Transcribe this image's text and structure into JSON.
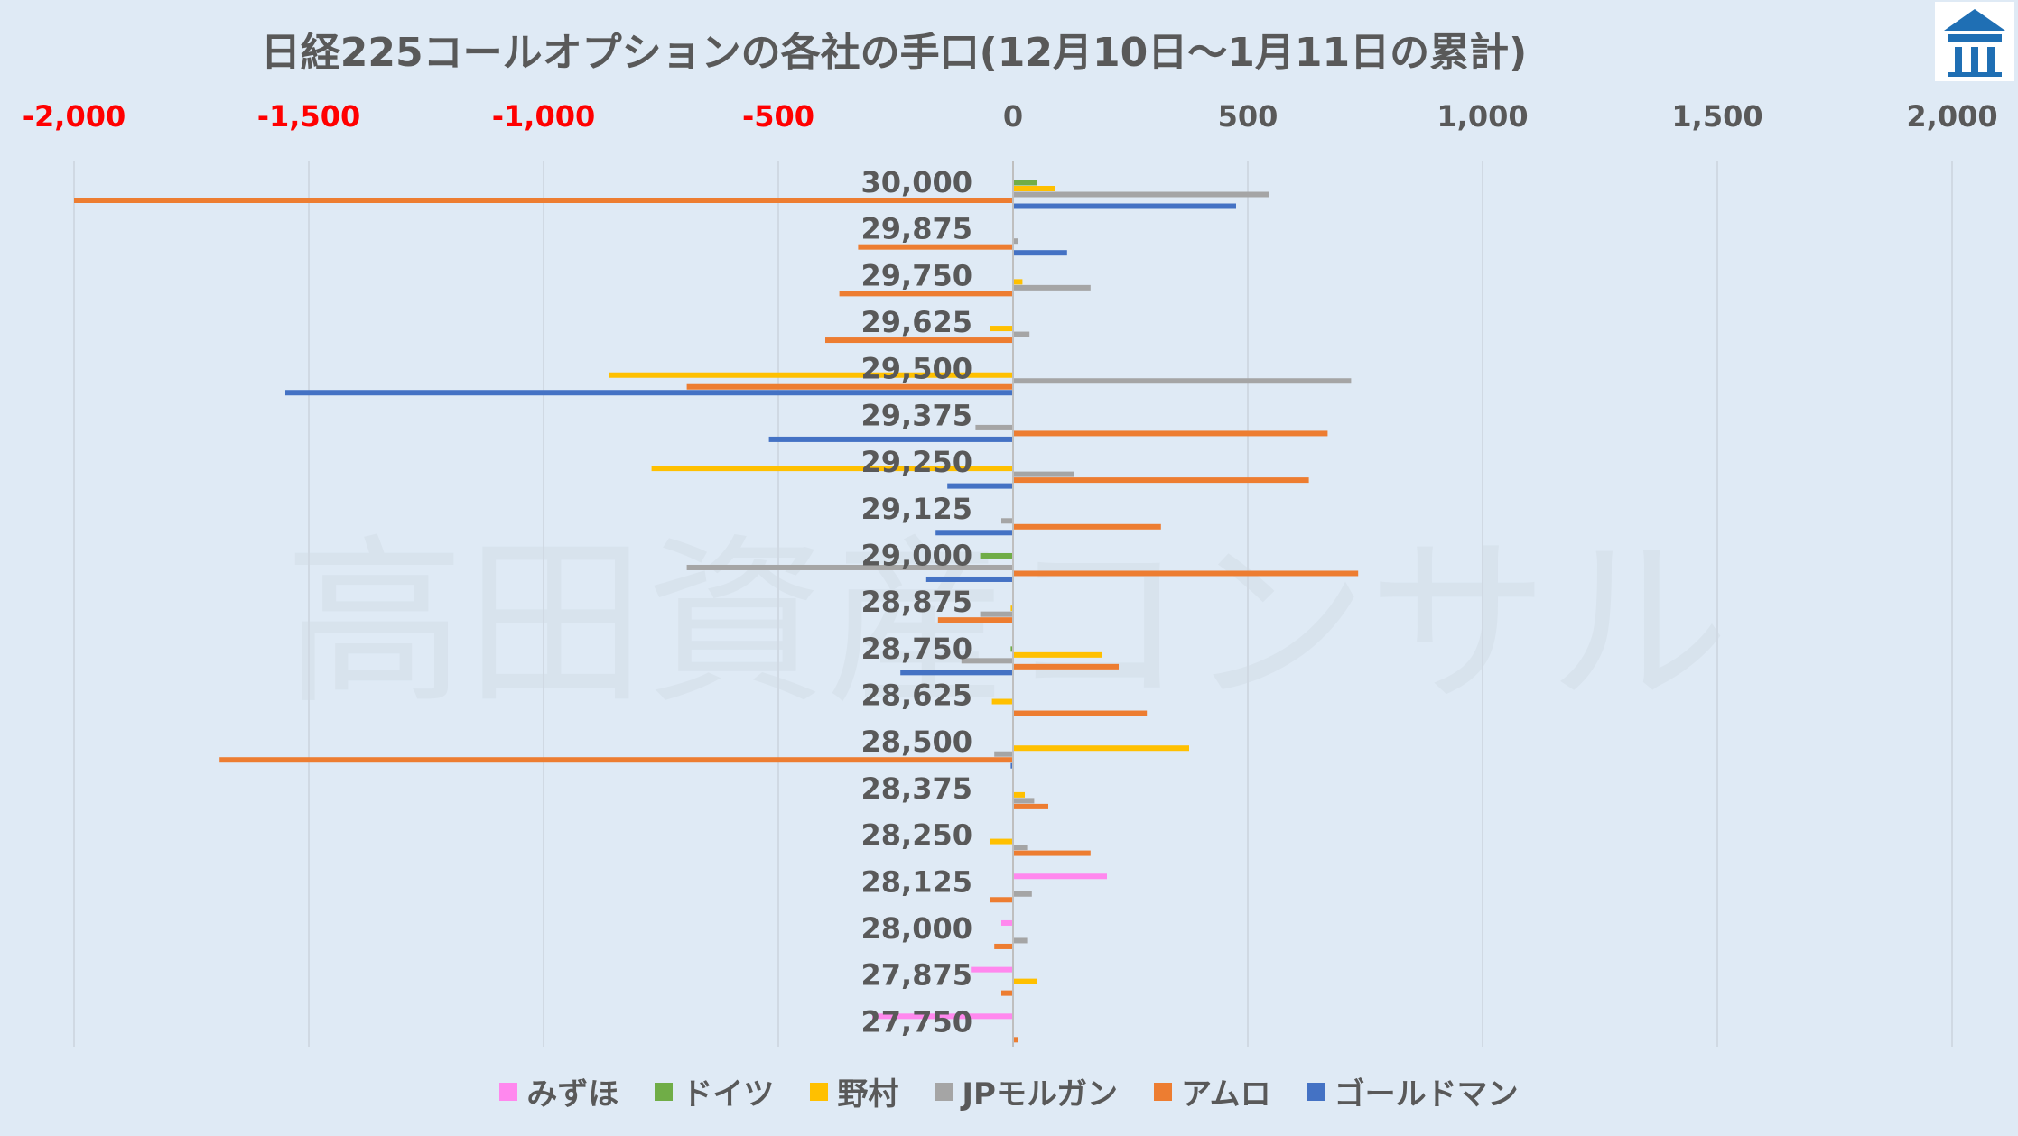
{
  "title": "日経225コールオプションの各社の手口(12月10日～1月11日の累計)",
  "watermark": "高田資産コンサル",
  "colors": {
    "background": "#dfeaf5",
    "grid": "#d0d9e3",
    "negative_tick": "#ff0000",
    "tick": "#595959"
  },
  "chart_data": {
    "type": "bar",
    "orientation": "horizontal",
    "xlim": [
      -2000,
      2000
    ],
    "xticks": [
      -2000,
      -1500,
      -1000,
      -500,
      0,
      500,
      1000,
      1500,
      2000
    ],
    "xtick_labels": [
      "-2,000",
      "-1,500",
      "-1,000",
      "-500",
      "0",
      "500",
      "1,000",
      "1,500",
      "2,000"
    ],
    "grid": true,
    "legend_position": "bottom",
    "categories": [
      "30,000",
      "29,875",
      "29,750",
      "29,625",
      "29,500",
      "29,375",
      "29,250",
      "29,125",
      "29,000",
      "28,875",
      "28,750",
      "28,625",
      "28,500",
      "28,375",
      "28,250",
      "28,125",
      "28,000",
      "27,875",
      "27,750"
    ],
    "series": [
      {
        "name": "みずほ",
        "color": "#ff88ee",
        "values": [
          0,
          0,
          0,
          0,
          0,
          0,
          0,
          0,
          0,
          0,
          0,
          0,
          0,
          0,
          0,
          200,
          -25,
          -90,
          -300
        ]
      },
      {
        "name": "ドイツ",
        "color": "#70ad47",
        "values": [
          50,
          0,
          0,
          0,
          0,
          0,
          0,
          0,
          -70,
          0,
          -5,
          0,
          0,
          0,
          0,
          0,
          0,
          0,
          0
        ]
      },
      {
        "name": "野村",
        "color": "#ffc000",
        "values": [
          90,
          0,
          20,
          -50,
          -860,
          0,
          -770,
          0,
          0,
          -5,
          190,
          -45,
          375,
          25,
          -50,
          0,
          0,
          50,
          0
        ]
      },
      {
        "name": "JPモルガン",
        "color": "#a5a5a5",
        "values": [
          545,
          10,
          165,
          35,
          720,
          -80,
          130,
          -25,
          -695,
          -70,
          -110,
          0,
          -40,
          45,
          30,
          40,
          30,
          0,
          0
        ]
      },
      {
        "name": "アムロ",
        "color": "#ed7d31",
        "values": [
          -2000,
          -330,
          -370,
          -400,
          -695,
          670,
          630,
          315,
          735,
          -160,
          225,
          285,
          -1690,
          75,
          165,
          -50,
          -40,
          -25,
          10
        ]
      },
      {
        "name": "ゴールドマン",
        "color": "#4472c4",
        "values": [
          475,
          115,
          0,
          0,
          -1550,
          -520,
          -140,
          -165,
          -185,
          0,
          -240,
          0,
          -5,
          0,
          0,
          0,
          0,
          0,
          0
        ]
      }
    ]
  }
}
